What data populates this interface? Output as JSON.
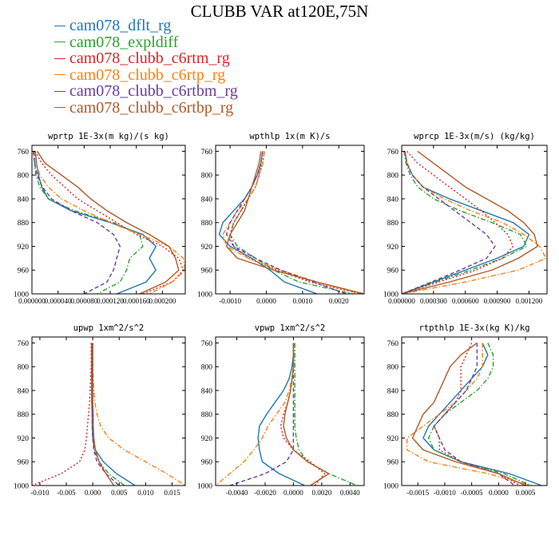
{
  "title": "CLUBB VAR at120E,75N",
  "legend": [
    {
      "name": "cam078_dflt_rg",
      "color": "#1f77b4"
    },
    {
      "name": "cam078_expldiff",
      "color": "#2ca02c"
    },
    {
      "name": "cam078_clubb_c6rtm_rg",
      "color": "#d62728"
    },
    {
      "name": "cam078_clubb_c6rtp_rg",
      "color": "#ff7f0e"
    },
    {
      "name": "cam078_clubb_c6rtbm_rg",
      "color": "#6a3d9a"
    },
    {
      "name": "cam078_clubb_c6rtbp_rg",
      "color": "#b15928"
    }
  ],
  "chart_data": [
    {
      "type": "line",
      "title": "wprtp  1E-3x(m kg)/(s kg)",
      "xlim": [
        0.0,
        0.000235
      ],
      "ylim": [
        1000,
        750
      ],
      "y_inverted": true,
      "xticks": [
        0.0,
        4e-05,
        8e-05,
        0.00012,
        0.00016,
        0.0002
      ],
      "xtick_labels": [
        "0.000000",
        "0.000040",
        "0.000080",
        "0.000120",
        "0.000160",
        "0.000200"
      ],
      "yticks": [
        760,
        800,
        840,
        880,
        920,
        960,
        1000
      ],
      "y": [
        760,
        780,
        800,
        820,
        840,
        860,
        880,
        900,
        920,
        940,
        960,
        980,
        1000
      ],
      "series": [
        {
          "name": "cam078_dflt_rg",
          "style": "solid",
          "values": [
            5e-06,
            7e-06,
            1e-05,
            1.5e-05,
            2.5e-05,
            6e-05,
            0.00012,
            0.00017,
            0.00019,
            0.00018,
            0.00019,
            0.000175,
            0.00013
          ]
        },
        {
          "name": "cam078_expldiff",
          "style": "dashdot",
          "values": [
            3e-06,
            4e-06,
            6e-06,
            1.2e-05,
            2.5e-05,
            6.5e-05,
            0.000125,
            0.000165,
            0.00017,
            0.00015,
            0.000145,
            0.000135,
            0.0001
          ]
        },
        {
          "name": "cam078_clubb_c6rtm_rg",
          "style": "dotted",
          "values": [
            5e-06,
            1.5e-05,
            3e-05,
            5e-05,
            7e-05,
            0.0001,
            0.00013,
            0.00016,
            0.0002,
            0.000225,
            0.000232,
            0.000215,
            0.00017
          ]
        },
        {
          "name": "cam078_clubb_c6rtp_rg",
          "style": "dashdot",
          "values": [
            3e-06,
            6e-06,
            1.2e-05,
            2.5e-05,
            4.5e-05,
            8e-05,
            0.00012,
            0.000165,
            0.00021,
            0.000232,
            0.000235,
            0.000215,
            0.00018
          ]
        },
        {
          "name": "cam078_clubb_c6rtbm_rg",
          "style": "dashed",
          "values": [
            2e-06,
            4e-06,
            8e-06,
            1.6e-05,
            3e-05,
            6e-05,
            0.0001,
            0.000125,
            0.000135,
            0.00013,
            0.000125,
            0.000115,
            8e-05
          ]
        },
        {
          "name": "cam078_clubb_c6rtbp_rg",
          "style": "solid",
          "values": [
            8e-06,
            2e-05,
            4.5e-05,
            7e-05,
            9e-05,
            0.000115,
            0.000145,
            0.00018,
            0.00021,
            0.00022,
            0.000225,
            0.000205,
            0.000165
          ]
        }
      ]
    },
    {
      "type": "line",
      "title": "wpthlp  1x(m K)/s",
      "xlim": [
        -0.0014,
        0.0027
      ],
      "ylim": [
        1000,
        750
      ],
      "y_inverted": true,
      "xticks": [
        -0.001,
        0.0,
        0.001,
        0.002
      ],
      "xtick_labels": [
        "-0.0010",
        "0.0000",
        "0.0010",
        "0.0020"
      ],
      "yticks": [
        760,
        800,
        840,
        880,
        920,
        960,
        1000
      ],
      "y": [
        760,
        780,
        800,
        820,
        840,
        860,
        880,
        900,
        920,
        940,
        960,
        980,
        1000
      ],
      "series": [
        {
          "name": "cam078_dflt_rg",
          "style": "solid",
          "values": [
            -0.0001,
            -0.00015,
            -0.00025,
            -0.0004,
            -0.0006,
            -0.0009,
            -0.0012,
            -0.0013,
            -0.001,
            -0.0004,
            0.0001,
            0.0005,
            0.0014
          ]
        },
        {
          "name": "cam078_expldiff",
          "style": "dashdot",
          "values": [
            -0.0001,
            -0.00015,
            -0.0002,
            -0.0003,
            -0.0005,
            -0.0007,
            -0.0009,
            -0.001,
            -0.0008,
            -0.0003,
            0.0002,
            0.0009,
            0.0024
          ]
        },
        {
          "name": "cam078_clubb_c6rtm_rg",
          "style": "dotted",
          "values": [
            -5e-05,
            -0.0001,
            -0.0002,
            -0.0003,
            -0.0005,
            -0.0007,
            -0.0009,
            -0.001,
            -0.0009,
            -0.0005,
            0.0003,
            0.0012,
            0.0026
          ]
        },
        {
          "name": "cam078_clubb_c6rtp_rg",
          "style": "dashdot",
          "values": [
            -5e-05,
            -0.0001,
            -0.0002,
            -0.0003,
            -0.0005,
            -0.0008,
            -0.001,
            -0.0012,
            -0.0011,
            -0.0005,
            0.0004,
            0.0014,
            0.0026
          ]
        },
        {
          "name": "cam078_clubb_c6rtbm_rg",
          "style": "dashed",
          "values": [
            -0.0001,
            -0.00015,
            -0.00025,
            -0.0004,
            -0.0006,
            -0.0008,
            -0.001,
            -0.0011,
            -0.0009,
            -0.0003,
            0.0004,
            0.0013,
            0.0022
          ]
        },
        {
          "name": "cam078_clubb_c6rtbp_rg",
          "style": "solid",
          "values": [
            -0.00015,
            -0.0002,
            -0.0003,
            -0.0004,
            -0.0005,
            -0.0006,
            -0.0008,
            -0.001,
            -0.0011,
            -0.0008,
            0.0002,
            0.0014,
            0.0027
          ]
        }
      ]
    },
    {
      "type": "line",
      "title": "wprcp  1E-3x(m/s) (kg/kg)",
      "xlim": [
        0.0,
        0.00137
      ],
      "ylim": [
        1000,
        750
      ],
      "y_inverted": true,
      "xticks": [
        0.0,
        0.0003,
        0.0006,
        0.0009,
        0.0012
      ],
      "xtick_labels": [
        "0.000000",
        "0.000300",
        "0.000600",
        "0.000900",
        "0.001200"
      ],
      "yticks": [
        760,
        800,
        840,
        880,
        920,
        960,
        1000
      ],
      "y": [
        760,
        780,
        800,
        820,
        840,
        860,
        880,
        900,
        920,
        940,
        960,
        980,
        1000
      ],
      "series": [
        {
          "name": "cam078_dflt_rg",
          "style": "solid",
          "values": [
            3e-05,
            5e-05,
            0.0001,
            0.0002,
            0.00045,
            0.00075,
            0.00105,
            0.0012,
            0.00115,
            0.0009,
            0.0006,
            0.0003,
            0.0
          ]
        },
        {
          "name": "cam078_expldiff",
          "style": "dashdot",
          "values": [
            2e-05,
            4e-05,
            8e-05,
            0.00015,
            0.0003,
            0.00055,
            0.00085,
            0.00112,
            0.00118,
            0.00095,
            0.00065,
            0.00032,
            0.0
          ]
        },
        {
          "name": "cam078_clubb_c6rtm_rg",
          "style": "dotted",
          "values": [
            5e-05,
            0.00015,
            0.0003,
            0.00045,
            0.0006,
            0.00075,
            0.00088,
            0.001,
            0.00105,
            0.00095,
            0.0007,
            0.00035,
            0.0
          ]
        },
        {
          "name": "cam078_clubb_c6rtp_rg",
          "style": "dashdot",
          "values": [
            2e-05,
            5e-05,
            0.0001,
            0.0002,
            0.0004,
            0.00065,
            0.00095,
            0.00115,
            0.0013,
            0.00136,
            0.0011,
            0.0006,
            0.0
          ]
        },
        {
          "name": "cam078_clubb_c6rtbm_rg",
          "style": "dashed",
          "values": [
            3e-05,
            5e-05,
            0.0001,
            0.0002,
            0.00035,
            0.0005,
            0.00065,
            0.0008,
            0.00088,
            0.0008,
            0.00055,
            0.00028,
            0.0
          ]
        },
        {
          "name": "cam078_clubb_c6rtbp_rg",
          "style": "solid",
          "values": [
            0.00015,
            0.0003,
            0.00045,
            0.0006,
            0.0008,
            0.001,
            0.00115,
            0.00125,
            0.00128,
            0.0011,
            0.00085,
            0.00045,
            0.0
          ]
        }
      ]
    },
    {
      "type": "line",
      "title": "upwp  1xm^2/s^2",
      "xlim": [
        -0.0115,
        0.0175
      ],
      "ylim": [
        1000,
        750
      ],
      "y_inverted": true,
      "xticks": [
        -0.01,
        -0.005,
        0.0,
        0.005,
        0.01,
        0.015
      ],
      "xtick_labels": [
        "-0.010",
        "-0.005",
        "0.000",
        "0.005",
        "0.010",
        "0.015"
      ],
      "yticks": [
        760,
        800,
        840,
        880,
        920,
        960,
        1000
      ],
      "y": [
        760,
        780,
        800,
        820,
        840,
        860,
        880,
        900,
        920,
        940,
        960,
        980,
        1000
      ],
      "series": [
        {
          "name": "cam078_dflt_rg",
          "style": "solid",
          "values": [
            -0.0002,
            -0.0002,
            -0.0002,
            -0.0002,
            -0.0002,
            -0.0002,
            -0.0001,
            -0.0001,
            0.0,
            0.0005,
            0.002,
            0.0045,
            0.008
          ]
        },
        {
          "name": "cam078_expldiff",
          "style": "dashdot",
          "values": [
            -0.0001,
            -0.0001,
            -0.0001,
            -0.0001,
            -0.0001,
            -0.0001,
            -0.0001,
            0.0,
            0.0,
            0.0003,
            0.0012,
            0.003,
            0.006
          ]
        },
        {
          "name": "cam078_clubb_c6rtm_rg",
          "style": "dotted",
          "values": [
            -0.0003,
            -0.0003,
            -0.0003,
            -0.0004,
            -0.0005,
            -0.0006,
            -0.0008,
            -0.001,
            -0.0012,
            -0.0015,
            -0.0025,
            -0.006,
            -0.0115
          ]
        },
        {
          "name": "cam078_clubb_c6rtp_rg",
          "style": "dashdot",
          "values": [
            0.0,
            0.0,
            0.0,
            0.0001,
            0.0002,
            0.0004,
            0.0008,
            0.0015,
            0.003,
            0.006,
            0.01,
            0.014,
            0.0175
          ]
        },
        {
          "name": "cam078_clubb_c6rtbm_rg",
          "style": "dashed",
          "values": [
            -0.0001,
            -0.0001,
            -0.0001,
            -0.0001,
            -0.0001,
            -0.0001,
            -0.0001,
            -0.0001,
            0.0,
            0.0002,
            0.0008,
            0.0025,
            0.005
          ]
        },
        {
          "name": "cam078_clubb_c6rtbp_rg",
          "style": "solid",
          "values": [
            0.0,
            0.0,
            0.0,
            0.0,
            0.0,
            0.0,
            0.0001,
            0.0001,
            0.0002,
            0.0005,
            0.0012,
            0.0025,
            0.004
          ]
        }
      ]
    },
    {
      "type": "line",
      "title": "vpwp  1xm^2/s^2",
      "xlim": [
        -0.0055,
        0.005
      ],
      "ylim": [
        1000,
        750
      ],
      "y_inverted": true,
      "xticks": [
        -0.004,
        -0.002,
        0.0,
        0.002,
        0.004
      ],
      "xtick_labels": [
        "-0.0040",
        "-0.0020",
        "0.0000",
        "0.0020",
        "0.0040"
      ],
      "yticks": [
        760,
        800,
        840,
        880,
        920,
        960,
        1000
      ],
      "y": [
        760,
        780,
        800,
        820,
        840,
        860,
        880,
        900,
        920,
        940,
        960,
        980,
        1000
      ],
      "series": [
        {
          "name": "cam078_dflt_rg",
          "style": "solid",
          "values": [
            0.0,
            0.0,
            -0.0001,
            -0.0003,
            -0.0007,
            -0.0013,
            -0.0019,
            -0.0024,
            -0.0025,
            -0.0024,
            -0.0022,
            -0.001,
            0.0008
          ]
        },
        {
          "name": "cam078_expldiff",
          "style": "dashdot",
          "values": [
            0.0001,
            0.0001,
            0.0001,
            0.0001,
            0.0001,
            0.0001,
            0.0001,
            0.0001,
            0.0002,
            0.0004,
            0.001,
            0.0025,
            0.0045
          ]
        },
        {
          "name": "cam078_clubb_c6rtm_rg",
          "style": "dotted",
          "values": [
            0.0,
            0.0,
            0.0,
            -0.0001,
            -0.0002,
            -0.0004,
            -0.0007,
            -0.0009,
            -0.0007,
            0.0,
            0.0012,
            0.0022,
            0.0015
          ]
        },
        {
          "name": "cam078_clubb_c6rtp_rg",
          "style": "dashdot",
          "values": [
            0.0,
            0.0,
            0.0,
            -0.0001,
            -0.0003,
            -0.0006,
            -0.0012,
            -0.0018,
            -0.0022,
            -0.0028,
            -0.0035,
            -0.0045,
            -0.0055
          ]
        },
        {
          "name": "cam078_clubb_c6rtbm_rg",
          "style": "dashed",
          "values": [
            0.0,
            0.0,
            0.0,
            0.0,
            0.0,
            0.0,
            0.0,
            0.0,
            0.0,
            0.0,
            -0.0005,
            -0.002,
            -0.0045
          ]
        },
        {
          "name": "cam078_clubb_c6rtbp_rg",
          "style": "solid",
          "values": [
            0.0,
            0.0,
            0.0,
            -0.0001,
            -0.0002,
            -0.0004,
            -0.0006,
            -0.0007,
            -0.0005,
            0.0,
            0.001,
            0.0025,
            0.0012
          ]
        }
      ]
    },
    {
      "type": "line",
      "title": "rtpthlp  1E-3x(kg K)/kg",
      "xlim": [
        -0.0018,
        0.0009
      ],
      "ylim": [
        1000,
        750
      ],
      "y_inverted": true,
      "xticks": [
        -0.0015,
        -0.001,
        -0.0005,
        0.0,
        0.0005
      ],
      "xtick_labels": [
        "-0.0015",
        "-0.0010",
        "-0.0005",
        "0.0000",
        "0.0005"
      ],
      "yticks": [
        760,
        800,
        840,
        880,
        920,
        960,
        1000
      ],
      "y": [
        760,
        780,
        800,
        820,
        840,
        860,
        880,
        900,
        920,
        940,
        960,
        980,
        1000
      ],
      "series": [
        {
          "name": "cam078_dflt_rg",
          "style": "solid",
          "values": [
            -0.0003,
            -0.0002,
            -0.0003,
            -0.0005,
            -0.0007,
            -0.0009,
            -0.0011,
            -0.0013,
            -0.0014,
            -0.0012,
            -0.0007,
            0.0002,
            0.0008
          ]
        },
        {
          "name": "cam078_expldiff",
          "style": "dashdot",
          "values": [
            -0.0002,
            -0.0001,
            -0.0001,
            -0.0002,
            -0.0004,
            -0.0007,
            -0.001,
            -0.0012,
            -0.0013,
            -0.0012,
            -0.0007,
            0.0001,
            0.0006
          ]
        },
        {
          "name": "cam078_clubb_c6rtm_rg",
          "style": "dotted",
          "values": [
            -0.0005,
            -0.0006,
            -0.0007,
            -0.0007,
            -0.0007,
            -0.0008,
            -0.001,
            -0.0012,
            -0.0011,
            -0.0011,
            -0.0007,
            0.0,
            0.0004
          ]
        },
        {
          "name": "cam078_clubb_c6rtp_rg",
          "style": "dashdot",
          "values": [
            -0.0003,
            -0.0003,
            -0.0003,
            -0.0004,
            -0.0006,
            -0.0008,
            -0.0011,
            -0.0014,
            -0.0017,
            -0.0017,
            -0.0013,
            -0.0002,
            0.0006
          ]
        },
        {
          "name": "cam078_clubb_c6rtbm_rg",
          "style": "dashed",
          "values": [
            -0.0004,
            -0.0004,
            -0.0004,
            -0.0005,
            -0.0006,
            -0.0008,
            -0.001,
            -0.0012,
            -0.0011,
            -0.001,
            -0.0007,
            0.0,
            0.0003
          ]
        },
        {
          "name": "cam078_clubb_c6rtbp_rg",
          "style": "solid",
          "values": [
            -0.0004,
            -0.0007,
            -0.0009,
            -0.001,
            -0.0011,
            -0.0012,
            -0.0014,
            -0.0015,
            -0.0016,
            -0.0014,
            -0.0008,
            0.0,
            0.0005
          ]
        }
      ]
    }
  ]
}
